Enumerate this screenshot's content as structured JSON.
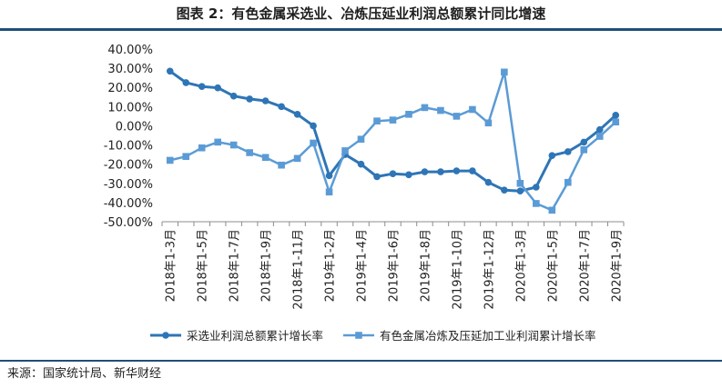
{
  "title": "图表  2：有色金属采选业、冶炼压延业利润总额累计同比增速",
  "source": "来源：国家统计局、新华财经",
  "chart_data": {
    "type": "line",
    "x": [
      "2018年1-3月",
      "2018年1-4月",
      "2018年1-5月",
      "2018年1-6月",
      "2018年1-7月",
      "2018年1-8月",
      "2018年1-9月",
      "2018年1-10月",
      "2018年1-11月",
      "2018年1-12月",
      "2019年1-2月",
      "2019年1-3月",
      "2019年1-4月",
      "2019年1-5月",
      "2019年1-6月",
      "2019年1-7月",
      "2019年1-8月",
      "2019年1-9月",
      "2019年1-10月",
      "2019年1-11月",
      "2019年1-12月",
      "2020年1-2月",
      "2020年1-3月",
      "2020年1-4月",
      "2020年1-5月",
      "2020年1-6月",
      "2020年1-7月",
      "2020年1-8月",
      "2020年1-9月"
    ],
    "tick_labels": [
      "2018年1-3月",
      "2018年1-5月",
      "2018年1-7月",
      "2018年1-9月",
      "2018年1-11月",
      "2019年1-2月",
      "2019年1-4月",
      "2019年1-6月",
      "2019年1-8月",
      "2019年1-10月",
      "2019年1-12月",
      "2020年1-3月",
      "2020年1-5月",
      "2020年1-7月",
      "2020年1-9月"
    ],
    "y_ticks": [
      "40.00%",
      "30.00%",
      "20.00%",
      "10.00%",
      "0.00%",
      "-10.00%",
      "-20.00%",
      "-30.00%",
      "-40.00%",
      "-50.00%"
    ],
    "ylim": [
      -50,
      40
    ],
    "series": [
      {
        "name": "采选业利润总额累计增长率",
        "color": "#2e75b6",
        "values": [
          28.5,
          22.5,
          20.5,
          19.8,
          15.5,
          14,
          13,
          10,
          6,
          0,
          -26,
          -15,
          -20,
          -26.5,
          -25,
          -25.5,
          -24,
          -24,
          -23.5,
          -23.5,
          -29.5,
          -33.5,
          -34,
          -32,
          -15.5,
          -13.5,
          -8.5,
          -2,
          5.5
        ]
      },
      {
        "name": "有色金属冶炼及压延加工业利润累计增长率",
        "color": "#5b9bd5",
        "values": [
          -18,
          -16,
          -11.5,
          -8.5,
          -10,
          -14,
          -16.5,
          -20.5,
          -17,
          -9,
          -34.5,
          -13,
          -7,
          2.5,
          3,
          6,
          9.5,
          8,
          5,
          8.5,
          1.5,
          28,
          -30,
          -40.5,
          -44,
          -29.5,
          -12.5,
          -5.5,
          2
        ]
      }
    ],
    "legend_position": "bottom",
    "grid": false
  }
}
